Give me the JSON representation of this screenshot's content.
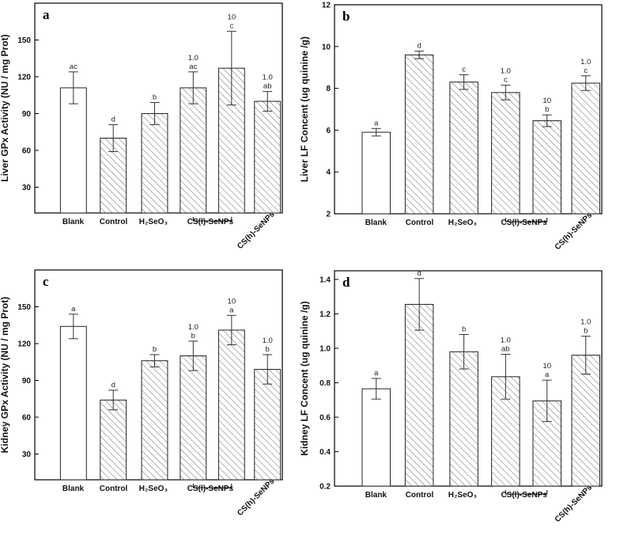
{
  "chart_data": [
    {
      "type": "bar",
      "panel": "a",
      "ylabel": "Liver GPx Activity (NU / mg Prot)",
      "ylim": [
        9,
        180
      ],
      "yticks": [
        30,
        60,
        90,
        120,
        150
      ],
      "categories": [
        "Blank",
        "Control",
        "H2SeO3",
        "CS(l)-SeNPs",
        "CS(l)-SeNPs",
        "CS(h)-SeNPs"
      ],
      "x_labels": [
        "Blank",
        "Control",
        "H₂SeO₃",
        "CS(l)-SeNPs",
        "CS(h)-SeNPs"
      ],
      "values": [
        111,
        70,
        90,
        111,
        127,
        100
      ],
      "errors": [
        13,
        11,
        9,
        13,
        30,
        8
      ],
      "letters": [
        "ac",
        "d",
        "b",
        "ac",
        "c",
        "ab"
      ],
      "doses": [
        "",
        "",
        "",
        "1.0",
        "10",
        "1.0"
      ],
      "fills": [
        "white",
        "hatch",
        "hatch",
        "hatch",
        "hatch",
        "hatch"
      ]
    },
    {
      "type": "bar",
      "panel": "b",
      "ylabel": "Liver LF Concent (ug quinine /g)",
      "ylim": [
        2,
        12
      ],
      "yticks": [
        2,
        4,
        6,
        8,
        10,
        12
      ],
      "categories": [
        "Blank",
        "Control",
        "H2SeO3",
        "CS(l)-SeNPs",
        "CS(l)-SeNPs",
        "CS(h)-SeNPs"
      ],
      "x_labels": [
        "Blank",
        "Control",
        "H₂SeO₃",
        "CS(l)-SeNPs",
        "CS(h)-SeNPs"
      ],
      "values": [
        5.9,
        9.6,
        8.3,
        7.8,
        6.45,
        8.25
      ],
      "errors": [
        0.18,
        0.18,
        0.35,
        0.35,
        0.28,
        0.35
      ],
      "letters": [
        "a",
        "d",
        "c",
        "c",
        "b",
        "c"
      ],
      "doses": [
        "",
        "",
        "",
        "1.0",
        "10",
        "1.0"
      ],
      "fills": [
        "white",
        "hatch",
        "hatch",
        "hatch",
        "hatch",
        "hatch"
      ]
    },
    {
      "type": "bar",
      "panel": "c",
      "ylabel": "Kidney GPx Activity (NU / mg Prot)",
      "ylim": [
        9,
        180
      ],
      "yticks": [
        30,
        60,
        90,
        120,
        150
      ],
      "categories": [
        "Blank",
        "Control",
        "H2SeO3",
        "CS(l)-SeNPs",
        "CS(l)-SeNPs",
        "CS(h)-SeNPs"
      ],
      "x_labels": [
        "Blank",
        "Control",
        "H₂SeO₃",
        "CS(l)-SeNPs",
        "CS(h)-SeNPs"
      ],
      "values": [
        134,
        74,
        106,
        110,
        131,
        99
      ],
      "errors": [
        10,
        8,
        5,
        12,
        12,
        12
      ],
      "letters": [
        "a",
        "d",
        "b",
        "b",
        "a",
        "b"
      ],
      "doses": [
        "",
        "",
        "",
        "1.0",
        "10",
        "1.0"
      ],
      "fills": [
        "white",
        "hatch",
        "hatch",
        "hatch",
        "hatch",
        "hatch"
      ]
    },
    {
      "type": "bar",
      "panel": "d",
      "ylabel": "Kidney LF Concent (ug quinine /g)",
      "ylim": [
        0.2,
        1.45
      ],
      "yticks": [
        0.2,
        0.4,
        0.6,
        0.8,
        1.0,
        1.2,
        1.4
      ],
      "tick_labels": [
        "0.2",
        "0.4",
        "0.6",
        "0.8",
        "1.0",
        "1.2",
        "1.4"
      ],
      "categories": [
        "Blank",
        "Control",
        "H2SeO3",
        "CS(l)-SeNPs",
        "CS(l)-SeNPs",
        "CS(h)-SeNPs"
      ],
      "x_labels": [
        "Blank",
        "Control",
        "H₂SeO₃",
        "CS(l)-SeNPs",
        "CS(h)-SeNPs"
      ],
      "values": [
        0.765,
        1.255,
        0.98,
        0.835,
        0.695,
        0.96
      ],
      "errors": [
        0.06,
        0.15,
        0.1,
        0.13,
        0.12,
        0.11
      ],
      "letters": [
        "a",
        "d",
        "b",
        "ab",
        "a",
        "b"
      ],
      "doses": [
        "",
        "",
        "",
        "1.0",
        "10",
        "1.0"
      ],
      "fills": [
        "white",
        "hatch",
        "hatch",
        "hatch",
        "hatch",
        "hatch"
      ]
    }
  ]
}
